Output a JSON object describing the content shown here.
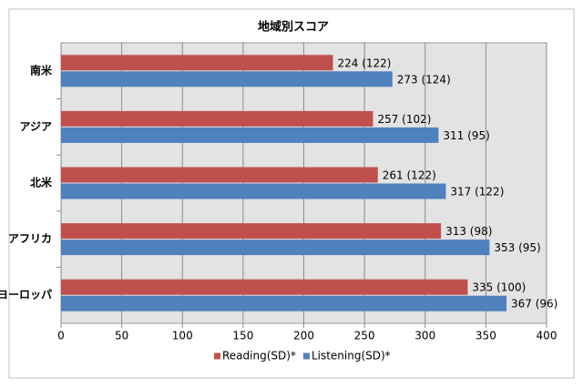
{
  "chart_data": {
    "type": "bar",
    "orientation": "horizontal",
    "title": "地域別スコア",
    "categories": [
      "南米",
      "アジア",
      "北米",
      "アフリカ",
      "ヨーロッパ"
    ],
    "series": [
      {
        "name": "Reading(SD)*",
        "color": "#c0504d",
        "values": [
          224,
          257,
          261,
          313,
          335
        ],
        "value_labels": [
          "224 (122)",
          "257 (102)",
          "261 (122)",
          "313 (98)",
          "335 (100)"
        ]
      },
      {
        "name": "Listening(SD)*",
        "color": "#4f81bd",
        "values": [
          273,
          311,
          317,
          353,
          367
        ],
        "value_labels": [
          "273 (124)",
          "311 (95)",
          "317 (122)",
          "353 (95)",
          "367 (96)"
        ]
      }
    ],
    "xlim": [
      0,
      400
    ],
    "xticks": [
      0,
      50,
      100,
      150,
      200,
      250,
      300,
      350,
      400
    ],
    "grid": true,
    "legend": "bottom"
  }
}
